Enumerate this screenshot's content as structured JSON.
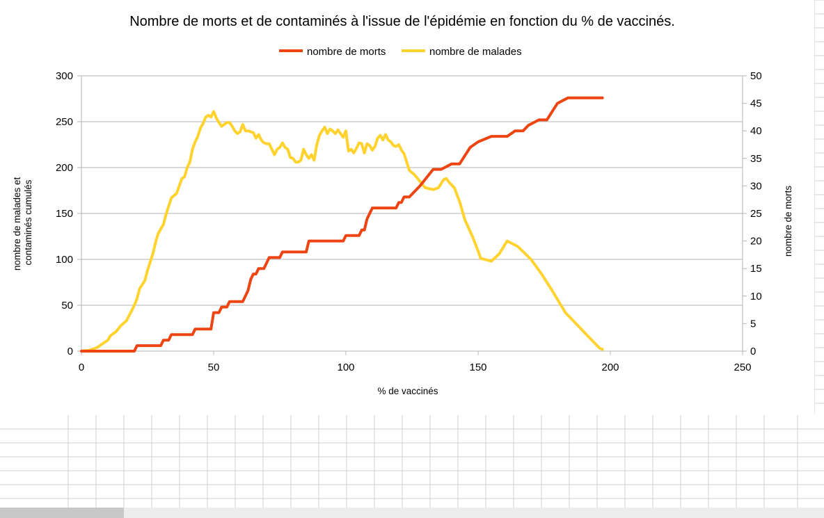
{
  "chart_data": {
    "type": "line",
    "title": "Nombre de morts et de contaminés à l'issue de l'épidémie en fonction du % de vaccinés.",
    "xlabel": "% de vaccinés",
    "ylabel_left": [
      "nombre de malades et",
      "contaminés cumulés"
    ],
    "ylabel_right": "nombre de morts",
    "xlim": [
      0,
      250
    ],
    "ylim_left": [
      0,
      300
    ],
    "ylim_right": [
      0,
      50
    ],
    "x_ticks": [
      "0",
      "50",
      "100",
      "150",
      "200",
      "250"
    ],
    "y_left_ticks": [
      "0",
      "50",
      "100",
      "150",
      "200",
      "250",
      "300"
    ],
    "y_right_ticks": [
      "0",
      "5",
      "10",
      "15",
      "20",
      "25",
      "30",
      "35",
      "40",
      "45",
      "50"
    ],
    "grid": true,
    "legend_position": "top",
    "series": [
      {
        "name": "nombre de morts",
        "axis": "right",
        "color": "#ee4411",
        "points": [
          [
            0,
            0
          ],
          [
            20,
            0
          ],
          [
            21,
            1
          ],
          [
            30,
            1
          ],
          [
            31,
            2
          ],
          [
            33,
            2
          ],
          [
            34,
            3
          ],
          [
            42,
            3
          ],
          [
            43,
            4
          ],
          [
            49,
            4
          ],
          [
            50,
            7
          ],
          [
            52,
            7
          ],
          [
            53,
            8
          ],
          [
            55,
            8
          ],
          [
            56,
            9
          ],
          [
            61,
            9
          ],
          [
            63,
            11
          ],
          [
            64,
            13
          ],
          [
            65,
            14
          ],
          [
            66,
            14
          ],
          [
            67,
            15
          ],
          [
            69,
            15
          ],
          [
            71,
            17
          ],
          [
            75,
            17
          ],
          [
            76,
            18
          ],
          [
            85,
            18
          ],
          [
            86,
            20
          ],
          [
            99,
            20
          ],
          [
            100,
            21
          ],
          [
            105,
            21
          ],
          [
            106,
            22
          ],
          [
            107,
            22
          ],
          [
            108,
            24
          ],
          [
            109,
            25
          ],
          [
            110,
            26
          ],
          [
            119,
            26
          ],
          [
            120,
            27
          ],
          [
            121,
            27
          ],
          [
            122,
            28
          ],
          [
            124,
            28
          ],
          [
            128,
            30
          ],
          [
            133,
            33
          ],
          [
            136,
            33
          ],
          [
            140,
            34
          ],
          [
            143,
            34
          ],
          [
            147,
            37
          ],
          [
            150,
            38
          ],
          [
            155,
            39
          ],
          [
            161,
            39
          ],
          [
            164,
            40
          ],
          [
            167,
            40
          ],
          [
            169,
            41
          ],
          [
            173,
            42
          ],
          [
            176,
            42
          ],
          [
            180,
            45
          ],
          [
            184,
            46
          ],
          [
            197,
            46
          ]
        ]
      },
      {
        "name": "nombre de malades",
        "axis": "left",
        "color": "#ffd22e",
        "points": [
          [
            0,
            0
          ],
          [
            3,
            1
          ],
          [
            6,
            4
          ],
          [
            8,
            8
          ],
          [
            10,
            12
          ],
          [
            11,
            17
          ],
          [
            13,
            21
          ],
          [
            15,
            28
          ],
          [
            17,
            33
          ],
          [
            19,
            44
          ],
          [
            20,
            50
          ],
          [
            21,
            57
          ],
          [
            22,
            68
          ],
          [
            24,
            77
          ],
          [
            25,
            88
          ],
          [
            27,
            106
          ],
          [
            28,
            118
          ],
          [
            29,
            128
          ],
          [
            31,
            138
          ],
          [
            32,
            149
          ],
          [
            33,
            158
          ],
          [
            34,
            167
          ],
          [
            36,
            172
          ],
          [
            37,
            180
          ],
          [
            38,
            188
          ],
          [
            39,
            190
          ],
          [
            40,
            200
          ],
          [
            41,
            206
          ],
          [
            42,
            220
          ],
          [
            43,
            228
          ],
          [
            44,
            234
          ],
          [
            45,
            243
          ],
          [
            46,
            248
          ],
          [
            47,
            255
          ],
          [
            48,
            257
          ],
          [
            49,
            255
          ],
          [
            50,
            261
          ],
          [
            51,
            254
          ],
          [
            52,
            249
          ],
          [
            53,
            245
          ],
          [
            54,
            247
          ],
          [
            55,
            249
          ],
          [
            56,
            249
          ],
          [
            57,
            245
          ],
          [
            58,
            240
          ],
          [
            59,
            237
          ],
          [
            60,
            239
          ],
          [
            61,
            247
          ],
          [
            62,
            240
          ],
          [
            63,
            240
          ],
          [
            64,
            239
          ],
          [
            65,
            238
          ],
          [
            66,
            232
          ],
          [
            67,
            236
          ],
          [
            68,
            230
          ],
          [
            69,
            227
          ],
          [
            70,
            226
          ],
          [
            71,
            226
          ],
          [
            72,
            220
          ],
          [
            73,
            214
          ],
          [
            74,
            220
          ],
          [
            75,
            222
          ],
          [
            76,
            227
          ],
          [
            77,
            222
          ],
          [
            78,
            220
          ],
          [
            79,
            211
          ],
          [
            80,
            210
          ],
          [
            81,
            206
          ],
          [
            82,
            206
          ],
          [
            83,
            208
          ],
          [
            84,
            220
          ],
          [
            85,
            214
          ],
          [
            86,
            210
          ],
          [
            87,
            214
          ],
          [
            88,
            208
          ],
          [
            89,
            225
          ],
          [
            90,
            235
          ],
          [
            91,
            240
          ],
          [
            92,
            244
          ],
          [
            93,
            237
          ],
          [
            94,
            242
          ],
          [
            95,
            240
          ],
          [
            96,
            237
          ],
          [
            97,
            241
          ],
          [
            98,
            237
          ],
          [
            99,
            233
          ],
          [
            100,
            240
          ],
          [
            101,
            218
          ],
          [
            102,
            220
          ],
          [
            103,
            216
          ],
          [
            104,
            221
          ],
          [
            105,
            227
          ],
          [
            106,
            226
          ],
          [
            107,
            216
          ],
          [
            108,
            226
          ],
          [
            109,
            224
          ],
          [
            110,
            219
          ],
          [
            111,
            223
          ],
          [
            112,
            232
          ],
          [
            113,
            235
          ],
          [
            114,
            230
          ],
          [
            115,
            236
          ],
          [
            116,
            230
          ],
          [
            117,
            228
          ],
          [
            118,
            224
          ],
          [
            119,
            223
          ],
          [
            120,
            225
          ],
          [
            121,
            219
          ],
          [
            122,
            215
          ],
          [
            124,
            197
          ],
          [
            126,
            192
          ],
          [
            130,
            178
          ],
          [
            133,
            176
          ],
          [
            135,
            178
          ],
          [
            137,
            187
          ],
          [
            138,
            188
          ],
          [
            139,
            184
          ],
          [
            141,
            178
          ],
          [
            143,
            163
          ],
          [
            145,
            143
          ],
          [
            148,
            124
          ],
          [
            150,
            109
          ],
          [
            151,
            101
          ],
          [
            155,
            98
          ],
          [
            158,
            106
          ],
          [
            161,
            120
          ],
          [
            165,
            114
          ],
          [
            170,
            100
          ],
          [
            174,
            84
          ],
          [
            178,
            66
          ],
          [
            183,
            42
          ],
          [
            187,
            30
          ],
          [
            193,
            12
          ],
          [
            196,
            3
          ],
          [
            197,
            2
          ]
        ]
      }
    ]
  }
}
